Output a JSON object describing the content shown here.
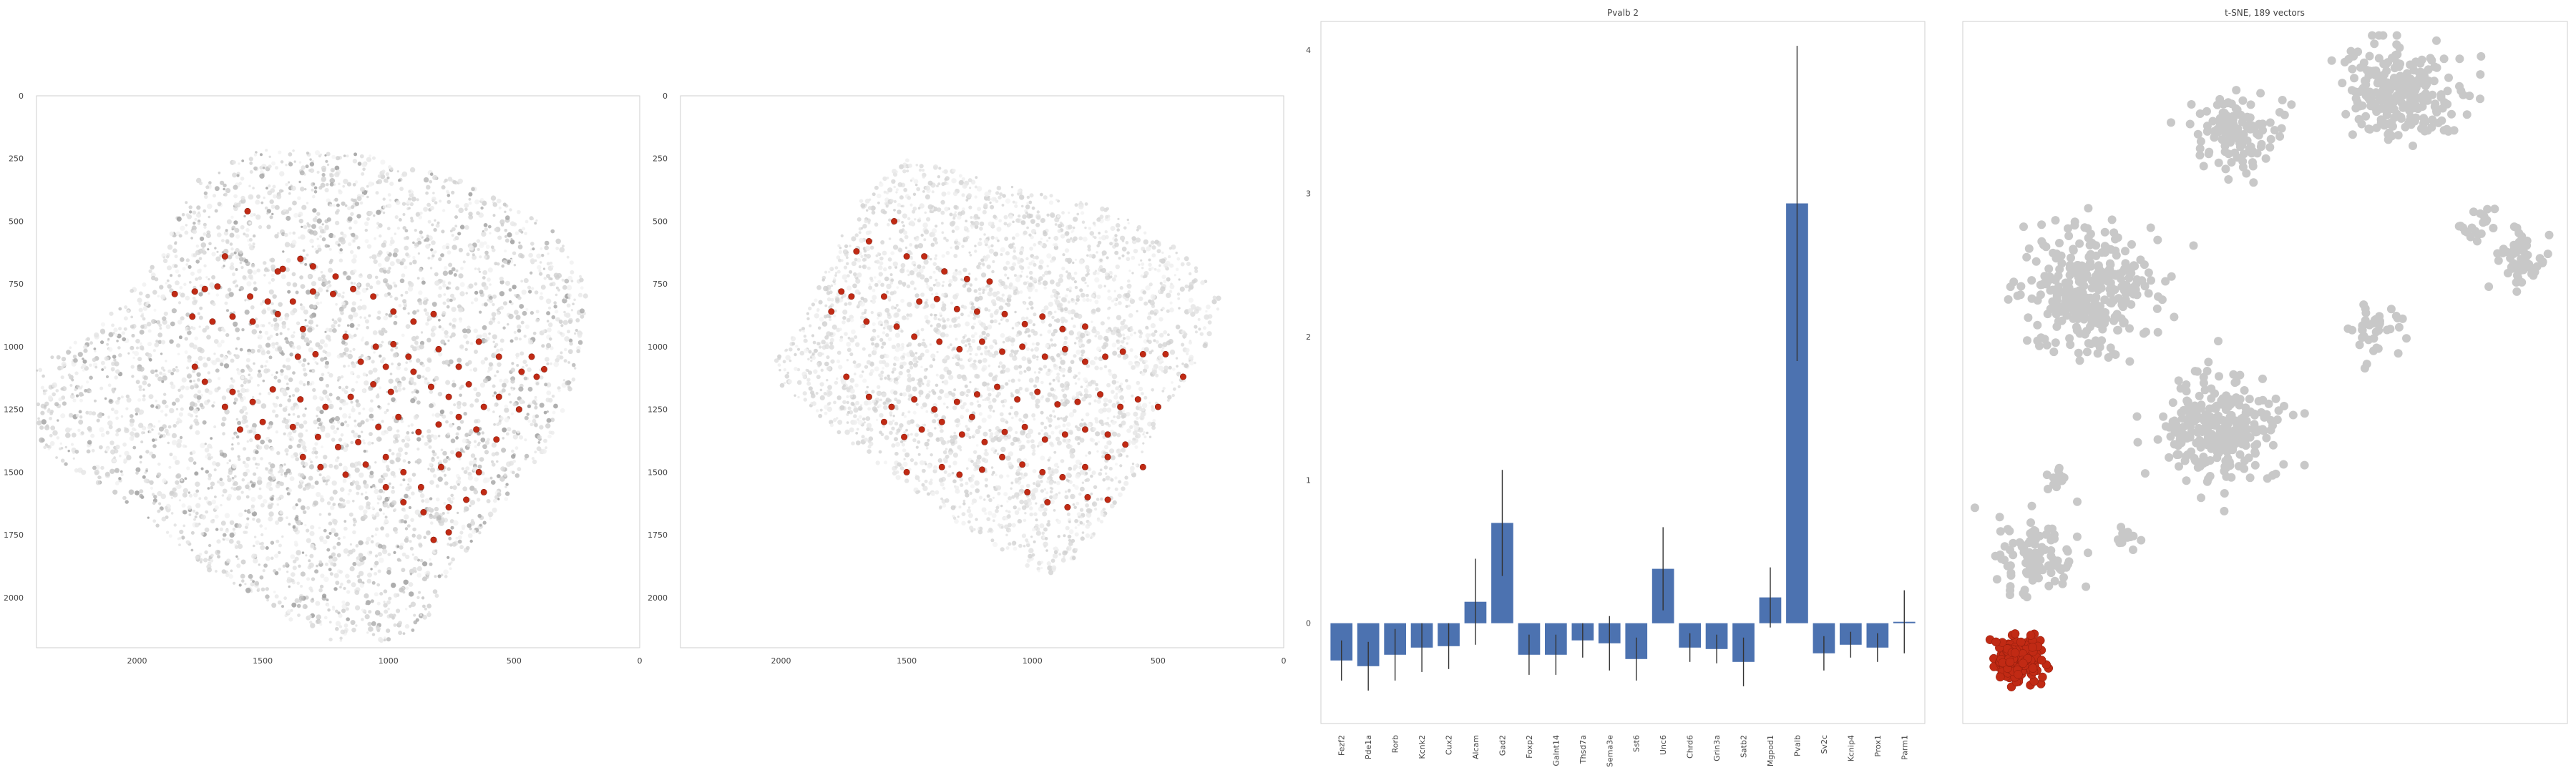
{
  "chart_data": [
    {
      "type": "scatter",
      "title": "",
      "xlim": [
        2400,
        0
      ],
      "ylim": [
        2200,
        0
      ],
      "xticks": [
        2000,
        1500,
        1000,
        500,
        0
      ],
      "yticks": [
        0,
        250,
        500,
        750,
        1000,
        1250,
        1500,
        1750,
        2000
      ],
      "highlight_color": "#c12a14",
      "background_color": "#bdbdbd",
      "highlighted_points": [
        [
          1560,
          460
        ],
        [
          1440,
          700
        ],
        [
          1420,
          690
        ],
        [
          1350,
          650
        ],
        [
          1300,
          680
        ],
        [
          1650,
          640
        ],
        [
          1210,
          720
        ],
        [
          1680,
          760
        ],
        [
          1730,
          770
        ],
        [
          1770,
          780
        ],
        [
          1850,
          790
        ],
        [
          1550,
          800
        ],
        [
          1480,
          820
        ],
        [
          1380,
          820
        ],
        [
          1300,
          780
        ],
        [
          1220,
          790
        ],
        [
          1140,
          770
        ],
        [
          1060,
          800
        ],
        [
          980,
          860
        ],
        [
          900,
          900
        ],
        [
          820,
          870
        ],
        [
          1780,
          880
        ],
        [
          1700,
          900
        ],
        [
          1620,
          880
        ],
        [
          1540,
          900
        ],
        [
          1440,
          870
        ],
        [
          1340,
          930
        ],
        [
          1360,
          1040
        ],
        [
          1290,
          1030
        ],
        [
          1170,
          960
        ],
        [
          1050,
          1000
        ],
        [
          980,
          990
        ],
        [
          920,
          1040
        ],
        [
          800,
          1010
        ],
        [
          720,
          1080
        ],
        [
          640,
          980
        ],
        [
          560,
          1040
        ],
        [
          470,
          1100
        ],
        [
          410,
          1120
        ],
        [
          1770,
          1080
        ],
        [
          1730,
          1140
        ],
        [
          1620,
          1180
        ],
        [
          1540,
          1220
        ],
        [
          1460,
          1170
        ],
        [
          1350,
          1210
        ],
        [
          1250,
          1240
        ],
        [
          1150,
          1200
        ],
        [
          1060,
          1150
        ],
        [
          990,
          1180
        ],
        [
          900,
          1100
        ],
        [
          830,
          1160
        ],
        [
          760,
          1200
        ],
        [
          680,
          1150
        ],
        [
          620,
          1240
        ],
        [
          560,
          1200
        ],
        [
          480,
          1250
        ],
        [
          1500,
          1300
        ],
        [
          1380,
          1320
        ],
        [
          1280,
          1360
        ],
        [
          1200,
          1400
        ],
        [
          1120,
          1380
        ],
        [
          1040,
          1320
        ],
        [
          960,
          1280
        ],
        [
          880,
          1340
        ],
        [
          800,
          1310
        ],
        [
          720,
          1280
        ],
        [
          650,
          1330
        ],
        [
          570,
          1370
        ],
        [
          1340,
          1440
        ],
        [
          1270,
          1480
        ],
        [
          1170,
          1510
        ],
        [
          1090,
          1470
        ],
        [
          1010,
          1440
        ],
        [
          940,
          1500
        ],
        [
          870,
          1560
        ],
        [
          790,
          1480
        ],
        [
          720,
          1430
        ],
        [
          640,
          1500
        ],
        [
          1010,
          1560
        ],
        [
          940,
          1620
        ],
        [
          860,
          1660
        ],
        [
          760,
          1640
        ],
        [
          690,
          1610
        ],
        [
          620,
          1580
        ],
        [
          820,
          1770
        ],
        [
          760,
          1740
        ],
        [
          1650,
          1240
        ],
        [
          1590,
          1330
        ],
        [
          1520,
          1360
        ],
        [
          430,
          1040
        ],
        [
          380,
          1090
        ],
        [
          1110,
          1060
        ],
        [
          1010,
          1080
        ]
      ]
    },
    {
      "type": "scatter",
      "title": "",
      "xlim": [
        2400,
        0
      ],
      "ylim": [
        2200,
        0
      ],
      "xticks": [
        2000,
        1500,
        1000,
        500,
        0
      ],
      "yticks": [
        0,
        250,
        500,
        750,
        1000,
        1250,
        1500,
        1750,
        2000
      ],
      "highlight_color": "#c12a14",
      "background_color": "#d5d5d5",
      "highlighted_points": [
        [
          1550,
          500
        ],
        [
          1650,
          580
        ],
        [
          1700,
          620
        ],
        [
          1500,
          640
        ],
        [
          1430,
          640
        ],
        [
          1350,
          700
        ],
        [
          1260,
          730
        ],
        [
          1170,
          740
        ],
        [
          1760,
          780
        ],
        [
          1720,
          800
        ],
        [
          1590,
          800
        ],
        [
          1450,
          820
        ],
        [
          1380,
          810
        ],
        [
          1300,
          850
        ],
        [
          1220,
          860
        ],
        [
          1110,
          870
        ],
        [
          1030,
          910
        ],
        [
          960,
          880
        ],
        [
          880,
          930
        ],
        [
          790,
          920
        ],
        [
          1800,
          860
        ],
        [
          1660,
          900
        ],
        [
          1540,
          920
        ],
        [
          1470,
          960
        ],
        [
          1370,
          980
        ],
        [
          1290,
          1010
        ],
        [
          1200,
          980
        ],
        [
          1120,
          1020
        ],
        [
          1040,
          1000
        ],
        [
          950,
          1040
        ],
        [
          870,
          1010
        ],
        [
          790,
          1060
        ],
        [
          710,
          1040
        ],
        [
          640,
          1020
        ],
        [
          560,
          1030
        ],
        [
          470,
          1030
        ],
        [
          1740,
          1120
        ],
        [
          1650,
          1200
        ],
        [
          1560,
          1240
        ],
        [
          1470,
          1210
        ],
        [
          1390,
          1250
        ],
        [
          1300,
          1220
        ],
        [
          1220,
          1190
        ],
        [
          1140,
          1160
        ],
        [
          1060,
          1210
        ],
        [
          980,
          1180
        ],
        [
          900,
          1230
        ],
        [
          820,
          1220
        ],
        [
          730,
          1190
        ],
        [
          650,
          1240
        ],
        [
          580,
          1210
        ],
        [
          500,
          1240
        ],
        [
          1590,
          1300
        ],
        [
          1510,
          1360
        ],
        [
          1440,
          1330
        ],
        [
          1360,
          1300
        ],
        [
          1280,
          1350
        ],
        [
          1190,
          1380
        ],
        [
          1110,
          1340
        ],
        [
          1030,
          1320
        ],
        [
          950,
          1370
        ],
        [
          870,
          1350
        ],
        [
          790,
          1330
        ],
        [
          700,
          1350
        ],
        [
          630,
          1390
        ],
        [
          1360,
          1480
        ],
        [
          1290,
          1510
        ],
        [
          1200,
          1490
        ],
        [
          1120,
          1440
        ],
        [
          1040,
          1470
        ],
        [
          960,
          1500
        ],
        [
          880,
          1520
        ],
        [
          790,
          1480
        ],
        [
          700,
          1440
        ],
        [
          1020,
          1580
        ],
        [
          940,
          1620
        ],
        [
          860,
          1640
        ],
        [
          780,
          1600
        ],
        [
          700,
          1610
        ],
        [
          400,
          1120
        ],
        [
          1240,
          1280
        ],
        [
          1500,
          1500
        ],
        [
          560,
          1480
        ]
      ]
    },
    {
      "type": "bar",
      "title": "Pvalb 2",
      "categories": [
        "Fezf2",
        "Pde1a",
        "Rorb",
        "Kcnk2",
        "Cux2",
        "Alcam",
        "Gad2",
        "Foxp2",
        "Galnt14",
        "Thsd7a",
        "Sema3e",
        "Sst6",
        "Unc6",
        "Chrd6",
        "Grin3a",
        "Satb2",
        "Mgpod1",
        "Pvalb",
        "Sv2c",
        "Kcnip4",
        "Prox1",
        "Parm1"
      ],
      "values": [
        -0.26,
        -0.3,
        -0.22,
        -0.17,
        -0.16,
        0.15,
        0.7,
        -0.22,
        -0.22,
        -0.12,
        -0.14,
        -0.25,
        0.38,
        -0.17,
        -0.18,
        -0.27,
        0.18,
        2.93,
        -0.21,
        -0.15,
        -0.17,
        0.01
      ],
      "error": [
        0.14,
        0.17,
        0.18,
        0.17,
        0.16,
        0.3,
        0.37,
        0.14,
        0.14,
        0.12,
        0.19,
        0.15,
        0.29,
        0.1,
        0.1,
        0.17,
        0.21,
        1.1,
        0.12,
        0.09,
        0.1,
        0.22
      ],
      "ylim": [
        -0.7,
        4.2
      ],
      "yticks": [
        0,
        1,
        2,
        3,
        4
      ],
      "bar_color": "#4c72b0"
    },
    {
      "type": "scatter",
      "title": "t-SNE, 189 vectors",
      "highlight_color": "#c12a14",
      "background_color": "#c8c8c8",
      "clusters": [
        {
          "center": [
            0.72,
            0.1
          ],
          "spread": [
            0.08,
            0.06
          ],
          "n": 260
        },
        {
          "center": [
            0.46,
            0.16
          ],
          "spread": [
            0.07,
            0.05
          ],
          "n": 120
        },
        {
          "center": [
            0.21,
            0.38
          ],
          "spread": [
            0.1,
            0.08
          ],
          "n": 320
        },
        {
          "center": [
            0.43,
            0.58
          ],
          "spread": [
            0.09,
            0.07
          ],
          "n": 280
        },
        {
          "center": [
            0.68,
            0.44
          ],
          "spread": [
            0.04,
            0.04
          ],
          "n": 40
        },
        {
          "center": [
            0.92,
            0.34
          ],
          "spread": [
            0.04,
            0.04
          ],
          "n": 60
        },
        {
          "center": [
            0.85,
            0.29
          ],
          "spread": [
            0.03,
            0.02
          ],
          "n": 20
        },
        {
          "center": [
            0.12,
            0.76
          ],
          "spread": [
            0.07,
            0.05
          ],
          "n": 110
        },
        {
          "center": [
            0.27,
            0.74
          ],
          "spread": [
            0.02,
            0.02
          ],
          "n": 15
        },
        {
          "center": [
            0.16,
            0.65
          ],
          "spread": [
            0.02,
            0.02
          ],
          "n": 12
        }
      ],
      "highlighted_cluster": {
        "center": [
          0.09,
          0.91
        ],
        "spread": [
          0.035,
          0.025
        ],
        "n": 189
      }
    }
  ]
}
